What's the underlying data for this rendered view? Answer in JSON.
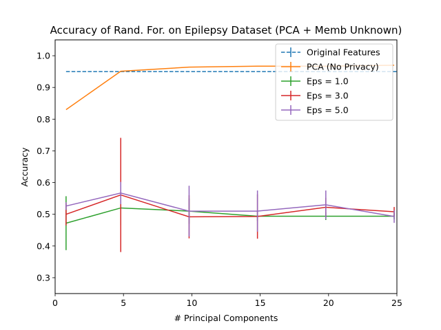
{
  "chart_data": {
    "type": "line",
    "title": "Accuracy of Rand. For. on Epilepsy Dataset (PCA + Memb Unknown)",
    "xlabel": "# Principal Components",
    "ylabel": "Accuracy",
    "xlim": [
      0,
      25
    ],
    "ylim": [
      0.25,
      1.05
    ],
    "xticks": [
      0,
      5,
      10,
      15,
      20,
      25
    ],
    "yticks": [
      0.3,
      0.4,
      0.5,
      0.6,
      0.7,
      0.8,
      0.9,
      1.0
    ],
    "grid": false,
    "legend_position": "top-right",
    "x": [
      0.8,
      4.8,
      9.8,
      14.8,
      19.8,
      24.8
    ],
    "series": [
      {
        "name": "Original Features",
        "style": "dashed",
        "color": "#1f77b4",
        "values": [
          0.95,
          0.95,
          0.95,
          0.95,
          0.95,
          0.95
        ],
        "errors": [
          0,
          0,
          0,
          0,
          0,
          0
        ]
      },
      {
        "name": "PCA (No Privacy)",
        "style": "solid",
        "color": "#ff7f0e",
        "values": [
          0.83,
          0.951,
          0.964,
          0.967,
          0.967,
          0.97
        ],
        "errors": [
          0,
          0,
          0,
          0,
          0,
          0
        ]
      },
      {
        "name": "Eps = 1.0",
        "style": "solid",
        "color": "#2ca02c",
        "values": [
          0.472,
          0.52,
          0.51,
          0.494,
          0.494,
          0.494
        ],
        "errors": [
          0.085,
          0.055,
          0.04,
          0.015,
          0.012,
          0.01
        ]
      },
      {
        "name": "Eps = 3.0",
        "style": "solid",
        "color": "#d62728",
        "values": [
          0.5,
          0.561,
          0.492,
          0.493,
          0.522,
          0.508
        ],
        "errors": [
          0.035,
          0.18,
          0.068,
          0.07,
          0.03,
          0.015
        ]
      },
      {
        "name": "Eps = 5.0",
        "style": "solid",
        "color": "#9467bd",
        "values": [
          0.526,
          0.567,
          0.51,
          0.51,
          0.53,
          0.493
        ],
        "errors": [
          0.012,
          0.035,
          0.08,
          0.065,
          0.045,
          0.02
        ]
      }
    ]
  }
}
